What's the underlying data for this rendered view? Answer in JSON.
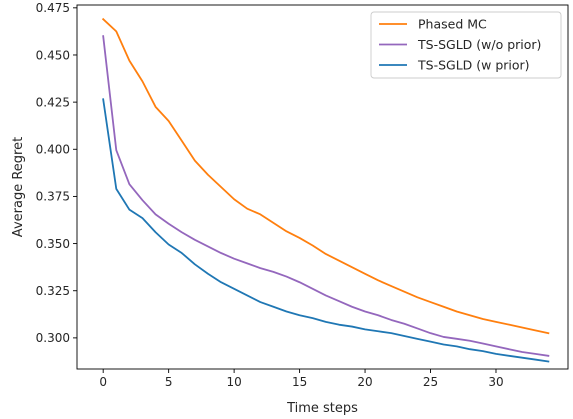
{
  "chart_data": {
    "type": "line",
    "title": "",
    "xlabel": "Time steps",
    "ylabel": "Average Regret",
    "xlim": [
      -2,
      35.5
    ],
    "ylim": [
      0.2835,
      0.4765
    ],
    "x_ticks": [
      0,
      5,
      10,
      15,
      20,
      25,
      30
    ],
    "y_ticks": [
      0.3,
      0.325,
      0.35,
      0.375,
      0.4,
      0.425,
      0.45,
      0.475
    ],
    "x_tick_labels": [
      "0",
      "5",
      "10",
      "15",
      "20",
      "25",
      "30"
    ],
    "y_tick_labels": [
      "0.300",
      "0.325",
      "0.350",
      "0.375",
      "0.400",
      "0.425",
      "0.450",
      "0.475"
    ],
    "grid": false,
    "legend_position": "top-right",
    "x": [
      0,
      1,
      2,
      3,
      4,
      5,
      6,
      7,
      8,
      9,
      10,
      11,
      12,
      13,
      14,
      15,
      16,
      17,
      18,
      19,
      20,
      21,
      22,
      23,
      24,
      25,
      26,
      27,
      28,
      29,
      30,
      31,
      32,
      33,
      34
    ],
    "series": [
      {
        "name": "Phased MC",
        "color": "#ff7f0e",
        "values": [
          0.469,
          0.4625,
          0.447,
          0.436,
          0.4225,
          0.415,
          0.4045,
          0.394,
          0.3865,
          0.38,
          0.3735,
          0.3685,
          0.3655,
          0.361,
          0.3565,
          0.353,
          0.349,
          0.3445,
          0.341,
          0.3375,
          0.334,
          0.3305,
          0.3275,
          0.3245,
          0.3215,
          0.319,
          0.3165,
          0.314,
          0.312,
          0.31,
          0.3085,
          0.307,
          0.3055,
          0.304,
          0.3025
        ]
      },
      {
        "name": "TS-SGLD (w/o prior)",
        "color": "#9467bd",
        "values": [
          0.46,
          0.3995,
          0.3815,
          0.373,
          0.3655,
          0.3605,
          0.356,
          0.352,
          0.3485,
          0.345,
          0.342,
          0.3395,
          0.337,
          0.335,
          0.3325,
          0.3295,
          0.326,
          0.3225,
          0.3195,
          0.3165,
          0.314,
          0.312,
          0.3095,
          0.3075,
          0.305,
          0.3025,
          0.3005,
          0.2995,
          0.2985,
          0.297,
          0.2955,
          0.294,
          0.2925,
          0.2915,
          0.2905
        ]
      },
      {
        "name": "TS-SGLD (w prior)",
        "color": "#1f77b4",
        "values": [
          0.4265,
          0.379,
          0.368,
          0.3635,
          0.356,
          0.3495,
          0.345,
          0.339,
          0.334,
          0.3295,
          0.326,
          0.3225,
          0.319,
          0.3165,
          0.314,
          0.312,
          0.3105,
          0.3085,
          0.307,
          0.306,
          0.3045,
          0.3035,
          0.3025,
          0.301,
          0.2995,
          0.298,
          0.2965,
          0.2955,
          0.294,
          0.293,
          0.2915,
          0.2905,
          0.2895,
          0.2885,
          0.2875
        ]
      }
    ]
  }
}
